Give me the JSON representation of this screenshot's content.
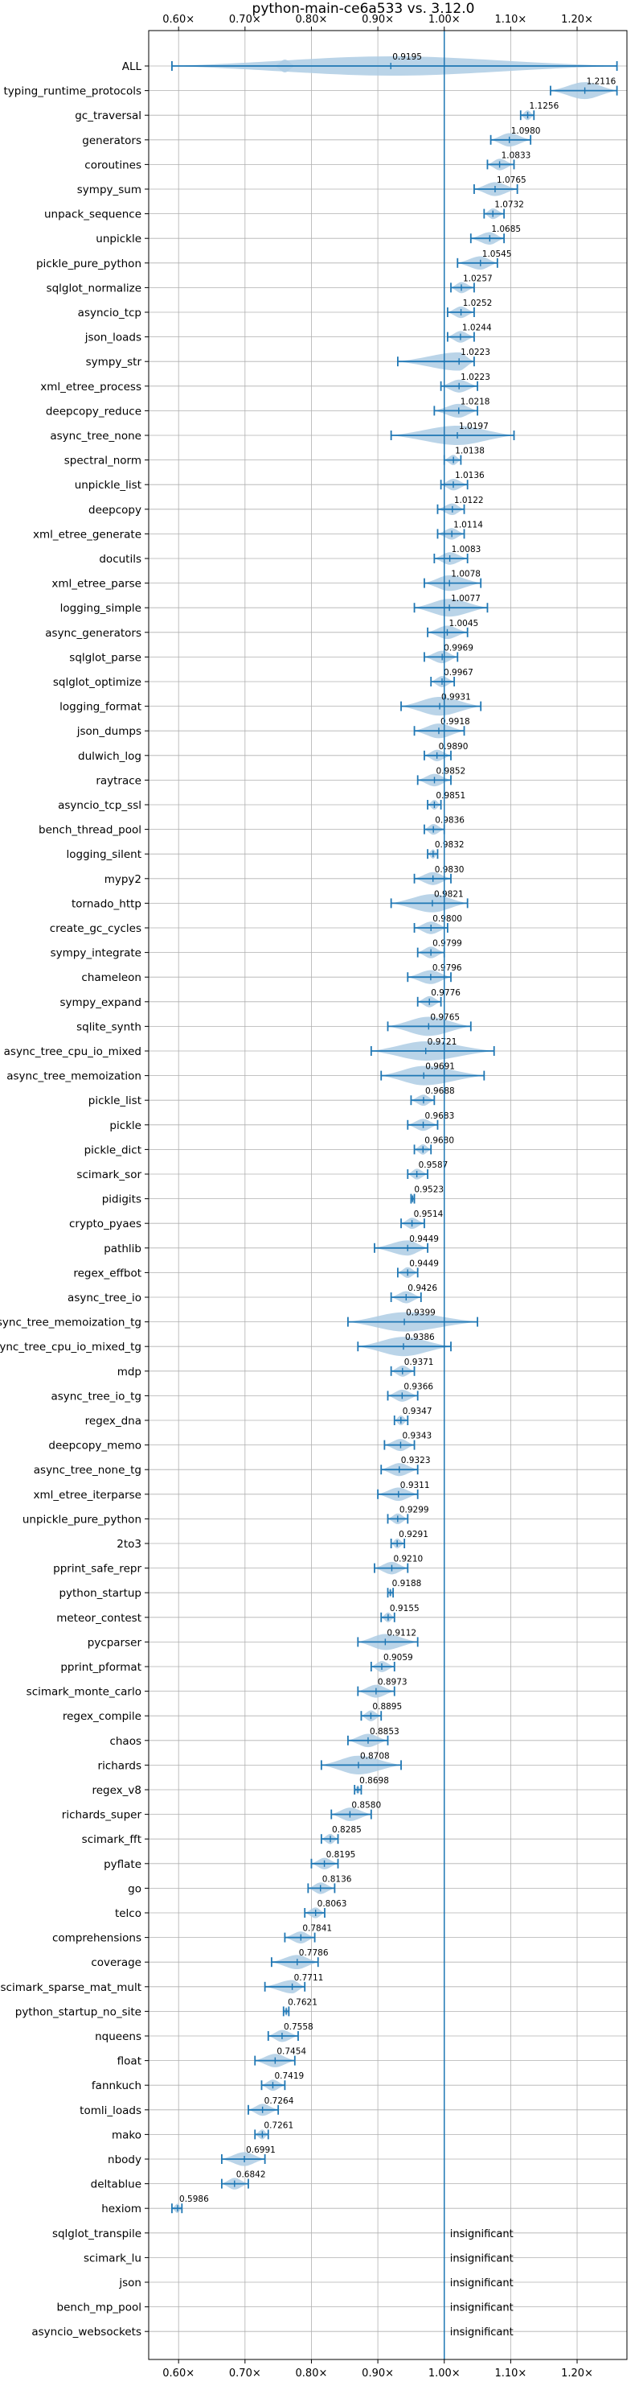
{
  "chart_data": {
    "type": "violin",
    "title": "python-main-ce6a533 vs. 3.12.0",
    "xlim": [
      0.555,
      1.275
    ],
    "x_ticks": [
      0.6,
      0.7,
      0.8,
      0.9,
      1.0,
      1.1,
      1.2
    ],
    "x_tick_labels": [
      "0.60×",
      "0.70×",
      "0.80×",
      "0.90×",
      "1.00×",
      "1.10×",
      "1.20×"
    ],
    "reference_line": 1.0,
    "grid": true,
    "accent_color": "#1f77b4",
    "violin_color": "#aecde4",
    "insignificant_text": "insignificant",
    "benchmarks": [
      {
        "name": "ALL",
        "value": 0.9195,
        "label": "0.9195",
        "min": 0.59,
        "max": 1.26,
        "extra": 0.76
      },
      {
        "name": "typing_runtime_protocols",
        "value": 1.2116,
        "label": "1.2116",
        "min": 1.16,
        "max": 1.26
      },
      {
        "name": "gc_traversal",
        "value": 1.1256,
        "label": "1.1256",
        "min": 1.115,
        "max": 1.135
      },
      {
        "name": "generators",
        "value": 1.098,
        "label": "1.0980",
        "min": 1.07,
        "max": 1.13
      },
      {
        "name": "coroutines",
        "value": 1.0833,
        "label": "1.0833",
        "min": 1.065,
        "max": 1.105
      },
      {
        "name": "sympy_sum",
        "value": 1.0765,
        "label": "1.0765",
        "min": 1.045,
        "max": 1.11
      },
      {
        "name": "unpack_sequence",
        "value": 1.0732,
        "label": "1.0732",
        "min": 1.06,
        "max": 1.09
      },
      {
        "name": "unpickle",
        "value": 1.0685,
        "label": "1.0685",
        "min": 1.04,
        "max": 1.09
      },
      {
        "name": "pickle_pure_python",
        "value": 1.0545,
        "label": "1.0545",
        "min": 1.02,
        "max": 1.08
      },
      {
        "name": "sqlglot_normalize",
        "value": 1.0257,
        "label": "1.0257",
        "min": 1.01,
        "max": 1.045
      },
      {
        "name": "asyncio_tcp",
        "value": 1.0252,
        "label": "1.0252",
        "min": 1.005,
        "max": 1.045
      },
      {
        "name": "json_loads",
        "value": 1.0244,
        "label": "1.0244",
        "min": 1.005,
        "max": 1.045
      },
      {
        "name": "sympy_str",
        "value": 1.0223,
        "label": "1.0223",
        "min": 0.93,
        "max": 1.045
      },
      {
        "name": "xml_etree_process",
        "value": 1.0223,
        "label": "1.0223",
        "min": 0.995,
        "max": 1.05
      },
      {
        "name": "deepcopy_reduce",
        "value": 1.0218,
        "label": "1.0218",
        "min": 0.985,
        "max": 1.05
      },
      {
        "name": "async_tree_none",
        "value": 1.0197,
        "label": "1.0197",
        "min": 0.92,
        "max": 1.105
      },
      {
        "name": "spectral_norm",
        "value": 1.0138,
        "label": "1.0138",
        "min": 1.0,
        "max": 1.025
      },
      {
        "name": "unpickle_list",
        "value": 1.0136,
        "label": "1.0136",
        "min": 0.995,
        "max": 1.035
      },
      {
        "name": "deepcopy",
        "value": 1.0122,
        "label": "1.0122",
        "min": 0.99,
        "max": 1.03
      },
      {
        "name": "xml_etree_generate",
        "value": 1.0114,
        "label": "1.0114",
        "min": 0.99,
        "max": 1.03
      },
      {
        "name": "docutils",
        "value": 1.0083,
        "label": "1.0083",
        "min": 0.985,
        "max": 1.035
      },
      {
        "name": "xml_etree_parse",
        "value": 1.0078,
        "label": "1.0078",
        "min": 0.97,
        "max": 1.055
      },
      {
        "name": "logging_simple",
        "value": 1.0077,
        "label": "1.0077",
        "min": 0.955,
        "max": 1.065
      },
      {
        "name": "async_generators",
        "value": 1.0045,
        "label": "1.0045",
        "min": 0.975,
        "max": 1.035
      },
      {
        "name": "sqlglot_parse",
        "value": 0.9969,
        "label": "0.9969",
        "min": 0.97,
        "max": 1.02
      },
      {
        "name": "sqlglot_optimize",
        "value": 0.9967,
        "label": "0.9967",
        "min": 0.98,
        "max": 1.015
      },
      {
        "name": "logging_format",
        "value": 0.9931,
        "label": "0.9931",
        "min": 0.935,
        "max": 1.055
      },
      {
        "name": "json_dumps",
        "value": 0.9918,
        "label": "0.9918",
        "min": 0.955,
        "max": 1.03
      },
      {
        "name": "dulwich_log",
        "value": 0.989,
        "label": "0.9890",
        "min": 0.97,
        "max": 1.01
      },
      {
        "name": "raytrace",
        "value": 0.9852,
        "label": "0.9852",
        "min": 0.96,
        "max": 1.01
      },
      {
        "name": "asyncio_tcp_ssl",
        "value": 0.9851,
        "label": "0.9851",
        "min": 0.975,
        "max": 0.995
      },
      {
        "name": "bench_thread_pool",
        "value": 0.9836,
        "label": "0.9836",
        "min": 0.97,
        "max": 1.0
      },
      {
        "name": "logging_silent",
        "value": 0.9832,
        "label": "0.9832",
        "min": 0.975,
        "max": 0.99
      },
      {
        "name": "mypy2",
        "value": 0.983,
        "label": "0.9830",
        "min": 0.955,
        "max": 1.01
      },
      {
        "name": "tornado_http",
        "value": 0.9821,
        "label": "0.9821",
        "min": 0.92,
        "max": 1.035
      },
      {
        "name": "create_gc_cycles",
        "value": 0.98,
        "label": "0.9800",
        "min": 0.955,
        "max": 1.005
      },
      {
        "name": "sympy_integrate",
        "value": 0.9799,
        "label": "0.9799",
        "min": 0.96,
        "max": 1.0
      },
      {
        "name": "chameleon",
        "value": 0.9796,
        "label": "0.9796",
        "min": 0.945,
        "max": 1.01
      },
      {
        "name": "sympy_expand",
        "value": 0.9776,
        "label": "0.9776",
        "min": 0.96,
        "max": 0.995
      },
      {
        "name": "sqlite_synth",
        "value": 0.9765,
        "label": "0.9765",
        "min": 0.915,
        "max": 1.04
      },
      {
        "name": "async_tree_cpu_io_mixed",
        "value": 0.9721,
        "label": "0.9721",
        "min": 0.89,
        "max": 1.075
      },
      {
        "name": "async_tree_memoization",
        "value": 0.9691,
        "label": "0.9691",
        "min": 0.905,
        "max": 1.06
      },
      {
        "name": "pickle_list",
        "value": 0.9688,
        "label": "0.9688",
        "min": 0.95,
        "max": 0.985
      },
      {
        "name": "pickle",
        "value": 0.9683,
        "label": "0.9683",
        "min": 0.945,
        "max": 0.99
      },
      {
        "name": "pickle_dict",
        "value": 0.968,
        "label": "0.9680",
        "min": 0.955,
        "max": 0.98
      },
      {
        "name": "scimark_sor",
        "value": 0.9587,
        "label": "0.9587",
        "min": 0.945,
        "max": 0.975
      },
      {
        "name": "pidigits",
        "value": 0.9523,
        "label": "0.9523",
        "min": 0.95,
        "max": 0.955
      },
      {
        "name": "crypto_pyaes",
        "value": 0.9514,
        "label": "0.9514",
        "min": 0.935,
        "max": 0.97
      },
      {
        "name": "pathlib",
        "value": 0.9449,
        "label": "0.9449",
        "min": 0.895,
        "max": 0.975
      },
      {
        "name": "regex_effbot",
        "value": 0.9449,
        "label": "0.9449",
        "min": 0.93,
        "max": 0.96
      },
      {
        "name": "async_tree_io",
        "value": 0.9426,
        "label": "0.9426",
        "min": 0.92,
        "max": 0.965
      },
      {
        "name": "async_tree_memoization_tg",
        "value": 0.9399,
        "label": "0.9399",
        "min": 0.855,
        "max": 1.05
      },
      {
        "name": "async_tree_cpu_io_mixed_tg",
        "value": 0.9386,
        "label": "0.9386",
        "min": 0.87,
        "max": 1.01
      },
      {
        "name": "mdp",
        "value": 0.9371,
        "label": "0.9371",
        "min": 0.92,
        "max": 0.955
      },
      {
        "name": "async_tree_io_tg",
        "value": 0.9366,
        "label": "0.9366",
        "min": 0.915,
        "max": 0.96
      },
      {
        "name": "regex_dna",
        "value": 0.9347,
        "label": "0.9347",
        "min": 0.925,
        "max": 0.945
      },
      {
        "name": "deepcopy_memo",
        "value": 0.9343,
        "label": "0.9343",
        "min": 0.91,
        "max": 0.955
      },
      {
        "name": "async_tree_none_tg",
        "value": 0.9323,
        "label": "0.9323",
        "min": 0.905,
        "max": 0.96
      },
      {
        "name": "xml_etree_iterparse",
        "value": 0.9311,
        "label": "0.9311",
        "min": 0.9,
        "max": 0.96
      },
      {
        "name": "unpickle_pure_python",
        "value": 0.9299,
        "label": "0.9299",
        "min": 0.915,
        "max": 0.945
      },
      {
        "name": "2to3",
        "value": 0.9291,
        "label": "0.9291",
        "min": 0.92,
        "max": 0.94
      },
      {
        "name": "pprint_safe_repr",
        "value": 0.921,
        "label": "0.9210",
        "min": 0.895,
        "max": 0.945
      },
      {
        "name": "python_startup",
        "value": 0.9188,
        "label": "0.9188",
        "min": 0.915,
        "max": 0.923
      },
      {
        "name": "meteor_contest",
        "value": 0.9155,
        "label": "0.9155",
        "min": 0.905,
        "max": 0.925
      },
      {
        "name": "pycparser",
        "value": 0.9112,
        "label": "0.9112",
        "min": 0.87,
        "max": 0.96
      },
      {
        "name": "pprint_pformat",
        "value": 0.9059,
        "label": "0.9059",
        "min": 0.89,
        "max": 0.925
      },
      {
        "name": "scimark_monte_carlo",
        "value": 0.8973,
        "label": "0.8973",
        "min": 0.87,
        "max": 0.925
      },
      {
        "name": "regex_compile",
        "value": 0.8895,
        "label": "0.8895",
        "min": 0.875,
        "max": 0.905
      },
      {
        "name": "chaos",
        "value": 0.8853,
        "label": "0.8853",
        "min": 0.855,
        "max": 0.915
      },
      {
        "name": "richards",
        "value": 0.8708,
        "label": "0.8708",
        "min": 0.815,
        "max": 0.935
      },
      {
        "name": "regex_v8",
        "value": 0.8698,
        "label": "0.8698",
        "min": 0.865,
        "max": 0.875
      },
      {
        "name": "richards_super",
        "value": 0.858,
        "label": "0.8580",
        "min": 0.83,
        "max": 0.89
      },
      {
        "name": "scimark_fft",
        "value": 0.8285,
        "label": "0.8285",
        "min": 0.815,
        "max": 0.84
      },
      {
        "name": "pyflate",
        "value": 0.8195,
        "label": "0.8195",
        "min": 0.8,
        "max": 0.84
      },
      {
        "name": "go",
        "value": 0.8136,
        "label": "0.8136",
        "min": 0.795,
        "max": 0.835
      },
      {
        "name": "telco",
        "value": 0.8063,
        "label": "0.8063",
        "min": 0.79,
        "max": 0.82
      },
      {
        "name": "comprehensions",
        "value": 0.7841,
        "label": "0.7841",
        "min": 0.76,
        "max": 0.805
      },
      {
        "name": "coverage",
        "value": 0.7786,
        "label": "0.7786",
        "min": 0.74,
        "max": 0.81
      },
      {
        "name": "scimark_sparse_mat_mult",
        "value": 0.7711,
        "label": "0.7711",
        "min": 0.73,
        "max": 0.79
      },
      {
        "name": "python_startup_no_site",
        "value": 0.7621,
        "label": "0.7621",
        "min": 0.758,
        "max": 0.766
      },
      {
        "name": "nqueens",
        "value": 0.7558,
        "label": "0.7558",
        "min": 0.735,
        "max": 0.78
      },
      {
        "name": "float",
        "value": 0.7454,
        "label": "0.7454",
        "min": 0.715,
        "max": 0.775
      },
      {
        "name": "fannkuch",
        "value": 0.7419,
        "label": "0.7419",
        "min": 0.725,
        "max": 0.76
      },
      {
        "name": "tomli_loads",
        "value": 0.7264,
        "label": "0.7264",
        "min": 0.705,
        "max": 0.75
      },
      {
        "name": "mako",
        "value": 0.7261,
        "label": "0.7261",
        "min": 0.715,
        "max": 0.735
      },
      {
        "name": "nbody",
        "value": 0.6991,
        "label": "0.6991",
        "min": 0.665,
        "max": 0.73
      },
      {
        "name": "deltablue",
        "value": 0.6842,
        "label": "0.6842",
        "min": 0.665,
        "max": 0.705
      },
      {
        "name": "hexiom",
        "value": 0.5986,
        "label": "0.5986",
        "min": 0.59,
        "max": 0.605
      }
    ],
    "insignificant": [
      "sqlglot_transpile",
      "scimark_lu",
      "json",
      "bench_mp_pool",
      "asyncio_websockets"
    ]
  }
}
